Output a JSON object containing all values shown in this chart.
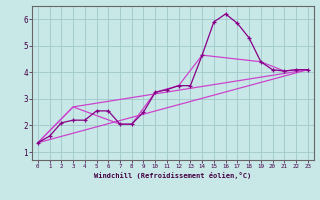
{
  "background_color": "#c8e8e8",
  "grid_color": "#a0c8c8",
  "line_color_dark": "#880088",
  "line_color_light": "#cc44cc",
  "xlim": [
    -0.5,
    23.5
  ],
  "ylim": [
    0.7,
    6.5
  ],
  "xlabel": "Windchill (Refroidissement éolien,°C)",
  "xticks": [
    0,
    1,
    2,
    3,
    4,
    5,
    6,
    7,
    8,
    9,
    10,
    11,
    12,
    13,
    14,
    15,
    16,
    17,
    18,
    19,
    20,
    21,
    22,
    23
  ],
  "yticks": [
    1,
    2,
    3,
    4,
    5,
    6
  ],
  "series1_x": [
    0,
    1,
    2,
    3,
    4,
    5,
    6,
    7,
    8,
    9,
    10,
    11,
    12,
    13,
    14,
    15,
    16,
    17,
    18,
    19,
    20,
    21,
    22,
    23
  ],
  "series1_y": [
    1.35,
    1.6,
    2.1,
    2.2,
    2.2,
    2.55,
    2.55,
    2.05,
    2.05,
    2.5,
    3.25,
    3.35,
    3.5,
    3.5,
    4.65,
    5.9,
    6.2,
    5.85,
    5.3,
    4.4,
    4.1,
    4.05,
    4.1,
    4.1
  ],
  "series2_x": [
    0,
    3,
    23
  ],
  "series2_y": [
    1.35,
    2.7,
    4.1
  ],
  "series3_x": [
    0,
    23
  ],
  "series3_y": [
    1.35,
    4.1
  ],
  "series4_x": [
    0,
    3,
    7,
    8,
    10,
    12,
    14,
    19,
    21,
    22,
    23
  ],
  "series4_y": [
    1.35,
    2.7,
    2.05,
    2.05,
    3.25,
    3.5,
    4.65,
    4.4,
    4.05,
    4.1,
    4.1
  ]
}
